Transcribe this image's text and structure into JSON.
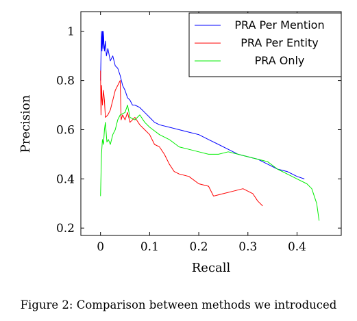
{
  "caption": "Figure 2: Comparison between methods we introduced",
  "chart_data": {
    "type": "line",
    "xlabel": "Recall",
    "ylabel": "Precision",
    "xlim": [
      -0.04,
      0.49
    ],
    "ylim": [
      0.17,
      1.08
    ],
    "xticks": [
      0,
      0.1,
      0.2,
      0.3,
      0.4
    ],
    "xtick_labels": [
      "0",
      "0.1",
      "0.2",
      "0.3",
      "0.4"
    ],
    "yticks": [
      0.2,
      0.4,
      0.6,
      0.8,
      1.0
    ],
    "ytick_labels": [
      "0.2",
      "0.4",
      "0.6",
      "0.8",
      "1"
    ],
    "legend_position": "top-right",
    "series": [
      {
        "name": "PRA Per Mention",
        "color": "#0000ff",
        "x": [
          0.0,
          0.002,
          0.003,
          0.004,
          0.005,
          0.006,
          0.007,
          0.008,
          0.01,
          0.012,
          0.015,
          0.02,
          0.025,
          0.03,
          0.035,
          0.04,
          0.045,
          0.05,
          0.055,
          0.06,
          0.065,
          0.07,
          0.08,
          0.09,
          0.1,
          0.11,
          0.12,
          0.14,
          0.16,
          0.18,
          0.2,
          0.22,
          0.24,
          0.26,
          0.28,
          0.3,
          0.32,
          0.34,
          0.36,
          0.38,
          0.4,
          0.415
        ],
        "y": [
          0.8,
          1.0,
          0.92,
          1.0,
          0.93,
          1.0,
          0.95,
          0.92,
          0.96,
          0.9,
          0.93,
          0.88,
          0.9,
          0.86,
          0.85,
          0.82,
          0.78,
          0.76,
          0.73,
          0.72,
          0.7,
          0.7,
          0.69,
          0.67,
          0.65,
          0.63,
          0.62,
          0.61,
          0.6,
          0.59,
          0.58,
          0.56,
          0.54,
          0.52,
          0.5,
          0.49,
          0.48,
          0.46,
          0.44,
          0.43,
          0.41,
          0.4
        ]
      },
      {
        "name": "PRA Per Entity",
        "color": "#ff0000",
        "x": [
          0.0,
          0.001,
          0.002,
          0.003,
          0.004,
          0.006,
          0.008,
          0.01,
          0.015,
          0.02,
          0.03,
          0.04,
          0.042,
          0.045,
          0.05,
          0.055,
          0.06,
          0.07,
          0.08,
          0.09,
          0.1,
          0.11,
          0.12,
          0.13,
          0.14,
          0.15,
          0.16,
          0.18,
          0.2,
          0.22,
          0.23,
          0.25,
          0.27,
          0.29,
          0.3,
          0.31,
          0.32,
          0.33
        ],
        "y": [
          0.84,
          0.66,
          0.78,
          0.73,
          0.7,
          0.76,
          0.72,
          0.65,
          0.66,
          0.68,
          0.76,
          0.8,
          0.64,
          0.66,
          0.64,
          0.67,
          0.63,
          0.65,
          0.62,
          0.6,
          0.58,
          0.54,
          0.53,
          0.5,
          0.46,
          0.43,
          0.42,
          0.41,
          0.38,
          0.37,
          0.33,
          0.34,
          0.35,
          0.36,
          0.35,
          0.34,
          0.31,
          0.29
        ]
      },
      {
        "name": "PRA Only",
        "color": "#00ee00",
        "x": [
          0.0,
          0.002,
          0.004,
          0.006,
          0.008,
          0.01,
          0.013,
          0.016,
          0.02,
          0.025,
          0.03,
          0.035,
          0.04,
          0.05,
          0.055,
          0.06,
          0.07,
          0.08,
          0.09,
          0.1,
          0.12,
          0.14,
          0.16,
          0.18,
          0.2,
          0.22,
          0.24,
          0.26,
          0.28,
          0.3,
          0.32,
          0.34,
          0.36,
          0.38,
          0.4,
          0.42,
          0.43,
          0.44,
          0.445
        ],
        "y": [
          0.33,
          0.5,
          0.56,
          0.54,
          0.6,
          0.63,
          0.55,
          0.56,
          0.54,
          0.58,
          0.6,
          0.64,
          0.66,
          0.67,
          0.7,
          0.65,
          0.64,
          0.66,
          0.63,
          0.61,
          0.58,
          0.56,
          0.53,
          0.52,
          0.51,
          0.5,
          0.5,
          0.51,
          0.5,
          0.49,
          0.48,
          0.47,
          0.44,
          0.42,
          0.4,
          0.38,
          0.36,
          0.3,
          0.23
        ]
      }
    ]
  }
}
